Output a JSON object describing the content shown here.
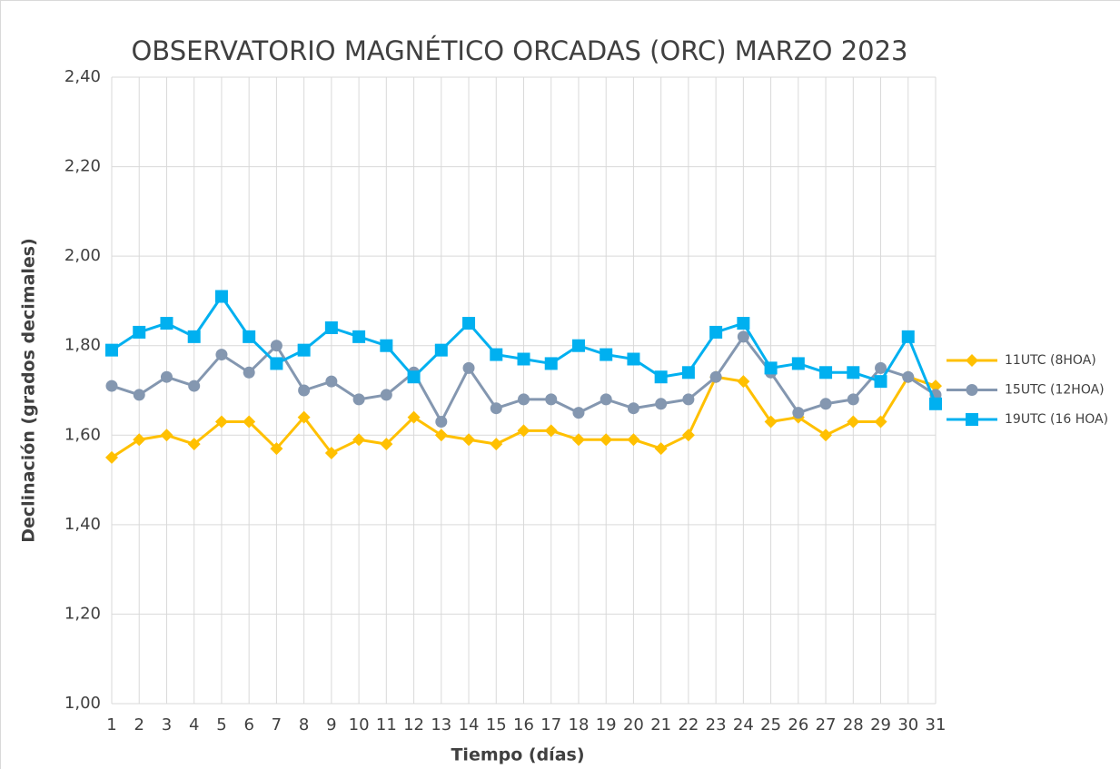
{
  "chart_data": {
    "type": "line",
    "title": "OBSERVATORIO MAGNÉTICO ORCADAS (ORC) MARZO 2023",
    "x_label": "Tiempo (días)",
    "y_label": "Declinación (grados decimales)",
    "x": [
      1,
      2,
      3,
      4,
      5,
      6,
      7,
      8,
      9,
      10,
      11,
      12,
      13,
      14,
      15,
      16,
      17,
      18,
      19,
      20,
      21,
      22,
      23,
      24,
      25,
      26,
      27,
      28,
      29,
      30,
      31
    ],
    "xlim": [
      1,
      31
    ],
    "xticks": [
      1,
      2,
      3,
      4,
      5,
      6,
      7,
      8,
      9,
      10,
      11,
      12,
      13,
      14,
      15,
      16,
      17,
      18,
      19,
      20,
      21,
      22,
      23,
      24,
      25,
      26,
      27,
      28,
      29,
      30,
      31
    ],
    "ylim": [
      1.0,
      2.4
    ],
    "yticks": [
      {
        "value": 1.0,
        "label": "1,00"
      },
      {
        "value": 1.2,
        "label": "1,20"
      },
      {
        "value": 1.4,
        "label": "1,40"
      },
      {
        "value": 1.6,
        "label": "1,60"
      },
      {
        "value": 1.8,
        "label": "1,80"
      },
      {
        "value": 2.0,
        "label": "2,00"
      },
      {
        "value": 2.2,
        "label": "2,20"
      },
      {
        "value": 2.4,
        "label": "2,40"
      }
    ],
    "grid": true,
    "legend": "right",
    "series": [
      {
        "name": "11UTC (8HOA)",
        "color": "#FFC000",
        "marker": "diamond",
        "values": [
          1.55,
          1.59,
          1.6,
          1.58,
          1.63,
          1.63,
          1.57,
          1.64,
          1.56,
          1.59,
          1.58,
          1.64,
          1.6,
          1.59,
          1.58,
          1.61,
          1.61,
          1.59,
          1.59,
          1.59,
          1.57,
          1.6,
          1.73,
          1.72,
          1.63,
          1.64,
          1.6,
          1.63,
          1.63,
          1.73,
          1.71
        ]
      },
      {
        "name": "15UTC (12HOA)",
        "color": "#8497B0",
        "marker": "circle",
        "values": [
          1.71,
          1.69,
          1.73,
          1.71,
          1.78,
          1.74,
          1.8,
          1.7,
          1.72,
          1.68,
          1.69,
          1.74,
          1.63,
          1.75,
          1.66,
          1.68,
          1.68,
          1.65,
          1.68,
          1.66,
          1.67,
          1.68,
          1.73,
          1.82,
          1.74,
          1.65,
          1.67,
          1.68,
          1.75,
          1.73,
          1.69
        ]
      },
      {
        "name": "19UTC (16 HOA)",
        "color": "#00B0F0",
        "marker": "square",
        "values": [
          1.79,
          1.83,
          1.85,
          1.82,
          1.91,
          1.82,
          1.76,
          1.79,
          1.84,
          1.82,
          1.8,
          1.73,
          1.79,
          1.85,
          1.78,
          1.77,
          1.76,
          1.8,
          1.78,
          1.77,
          1.73,
          1.74,
          1.83,
          1.85,
          1.75,
          1.76,
          1.74,
          1.74,
          1.72,
          1.82,
          1.67
        ]
      }
    ]
  }
}
